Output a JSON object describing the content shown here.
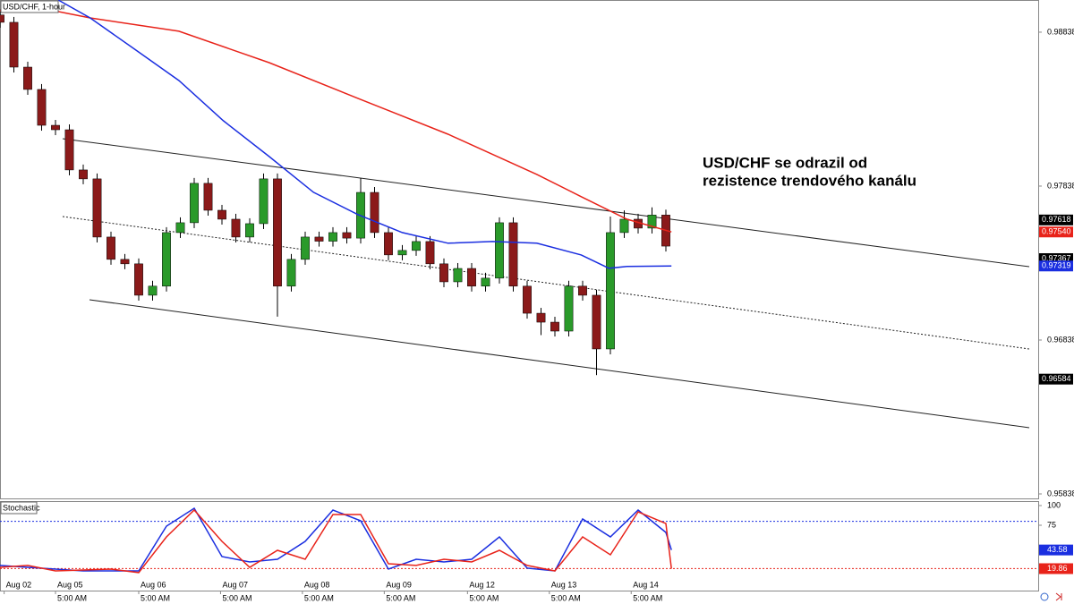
{
  "chart_data": [
    {
      "type": "candlestick",
      "title": "USD/CHF, 1-hour",
      "annotation": [
        "USD/CHF se odrazil od",
        "rezistence trendového kanálu"
      ],
      "x": [
        0,
        1,
        2,
        3,
        4,
        5,
        6,
        7,
        8,
        9,
        10,
        11,
        12,
        13,
        14,
        15,
        16,
        17,
        18,
        19,
        20,
        21,
        22,
        23,
        24,
        25,
        26,
        27,
        28,
        29,
        30,
        31,
        32,
        33,
        34,
        35,
        36,
        37,
        38,
        39,
        40,
        41,
        42,
        43,
        44,
        45,
        46,
        47,
        48
      ],
      "open": [
        0.9895,
        0.98902,
        0.98611,
        0.98466,
        0.98233,
        0.98204,
        0.97943,
        0.97885,
        0.97507,
        0.97362,
        0.97333,
        0.97129,
        0.97188,
        0.97536,
        0.976,
        0.97856,
        0.97681,
        0.97623,
        0.97507,
        0.97594,
        0.97885,
        0.97188,
        0.97362,
        0.97507,
        0.9748,
        0.97536,
        0.975,
        0.97797,
        0.97536,
        0.97391,
        0.9742,
        0.97478,
        0.97333,
        0.97216,
        0.97303,
        0.97188,
        0.9724,
        0.976,
        0.97188,
        0.97012,
        0.96954,
        0.96896,
        0.97188,
        0.97129,
        0.9678,
        0.97536,
        0.97623,
        0.97565,
        0.9765
      ],
      "high": [
        0.98985,
        0.98937,
        0.98646,
        0.98501,
        0.98268,
        0.98239,
        0.97978,
        0.9792,
        0.97542,
        0.97397,
        0.97368,
        0.97223,
        0.97571,
        0.97635,
        0.97891,
        0.97891,
        0.97716,
        0.97658,
        0.97629,
        0.9792,
        0.9792,
        0.97397,
        0.97542,
        0.97542,
        0.97571,
        0.97571,
        0.9789,
        0.97832,
        0.97571,
        0.97455,
        0.97513,
        0.97513,
        0.97368,
        0.97338,
        0.97338,
        0.97275,
        0.97635,
        0.97635,
        0.97223,
        0.97047,
        0.96989,
        0.97223,
        0.97223,
        0.97164,
        0.9764,
        0.9768,
        0.97658,
        0.977,
        0.97685
      ],
      "low": [
        0.98867,
        0.98576,
        0.98431,
        0.98198,
        0.98169,
        0.97908,
        0.9785,
        0.97472,
        0.97327,
        0.97298,
        0.97094,
        0.97094,
        0.97153,
        0.97501,
        0.97565,
        0.97646,
        0.97588,
        0.97472,
        0.97472,
        0.97559,
        0.9699,
        0.97153,
        0.97327,
        0.97445,
        0.97445,
        0.97465,
        0.97465,
        0.97501,
        0.97356,
        0.97356,
        0.97385,
        0.97298,
        0.97181,
        0.97181,
        0.97153,
        0.97153,
        0.97205,
        0.97153,
        0.96977,
        0.9687,
        0.96861,
        0.96861,
        0.97094,
        0.9661,
        0.96745,
        0.97501,
        0.9753,
        0.9753,
        0.97413
      ],
      "close": [
        0.98902,
        0.98611,
        0.98466,
        0.98233,
        0.98204,
        0.97943,
        0.97885,
        0.97507,
        0.97362,
        0.97333,
        0.97129,
        0.97188,
        0.97536,
        0.976,
        0.97856,
        0.97681,
        0.97623,
        0.97507,
        0.97594,
        0.97885,
        0.97188,
        0.97362,
        0.97507,
        0.9748,
        0.97536,
        0.975,
        0.97797,
        0.97536,
        0.97391,
        0.9742,
        0.97478,
        0.97333,
        0.97216,
        0.97303,
        0.97188,
        0.9724,
        0.976,
        0.97188,
        0.97012,
        0.96954,
        0.96896,
        0.97188,
        0.97129,
        0.9678,
        0.97536,
        0.97623,
        0.97565,
        0.9765,
        0.97448
      ],
      "up_color": "#2a9a2a",
      "down_color": "#8b1a1a",
      "series": [
        {
          "color": "#e8231a",
          "x": [
            0,
            3.9,
            6.5,
            12.9,
            19.4,
            25.8,
            32.3,
            38.7,
            41.9,
            45.2,
            48.4
          ],
          "values": [
            0.98977,
            0.98977,
            0.98931,
            0.98844,
            0.9864,
            0.98408,
            0.98175,
            0.97914,
            0.97769,
            0.97623,
            0.9754
          ]
        },
        {
          "color": "#1a2ee0",
          "x": [
            4.2,
            6.5,
            9.7,
            12.9,
            16.1,
            19.4,
            22.6,
            25.8,
            29,
            32.3,
            35.5,
            38.7,
            41.9,
            43.9,
            45.2,
            48.4
          ],
          "values": [
            0.99047,
            0.98931,
            0.98728,
            0.98524,
            0.98263,
            0.9803,
            0.97798,
            0.97653,
            0.97536,
            0.97467,
            0.97478,
            0.97467,
            0.97391,
            0.97304,
            0.97316,
            0.97319
          ]
        }
      ],
      "price_labels": [
        0.97618,
        {
          "value": 0.9754,
          "label": "0.97540"
        },
        0.97367,
        0.97319,
        0.96584
      ],
      "price_label_colors": [
        "#000000",
        "#e8231a",
        "#000000",
        "#1a2ee0",
        "#000000"
      ],
      "xlim": [
        0,
        74.84
      ],
      "ylim": [
        0.95809,
        0.99047
      ],
      "yticks": [
        0.98838,
        0.97838,
        0.96838,
        0.95838
      ],
      "xticks": [
        {
          "value": 0.3,
          "label": "Aug 02"
        },
        {
          "value": 4,
          "label": "Aug 05"
        },
        {
          "value": 10,
          "label": "Aug 06"
        },
        {
          "value": 15.9,
          "label": "Aug 07"
        },
        {
          "value": 21.8,
          "label": "Aug 08"
        },
        {
          "value": 27.7,
          "label": "Aug 09"
        },
        {
          "value": 33.7,
          "label": "Aug 12"
        },
        {
          "value": 39.6,
          "label": "Aug 13"
        },
        {
          "value": 45.5,
          "label": "Aug 14"
        }
      ],
      "xtick_times": [
        null,
        "5:00 AM",
        "5:00 AM",
        "5:00 AM",
        "5:00 AM",
        "5:00 AM",
        "5:00 AM",
        "5:00 AM",
        "5:00 AM"
      ]
    },
    {
      "type": "line",
      "title": "Stochastic",
      "series": [
        {
          "color": "#1a2ee0",
          "x": [
            0,
            2,
            4,
            6,
            8,
            10,
            12,
            14,
            16,
            18,
            20,
            22,
            24,
            26,
            28,
            30,
            32,
            34,
            36,
            38,
            40,
            42,
            44,
            46,
            48,
            48.4
          ],
          "values": [
            23.9,
            21.6,
            19.3,
            17.0,
            17.0,
            17.0,
            73.9,
            96.6,
            35.2,
            28.4,
            31.8,
            54.5,
            94.3,
            80.7,
            19.3,
            31.8,
            28.4,
            31.8,
            60.2,
            20.5,
            17.0,
            83.0,
            60.2,
            94.3,
            65.9,
            43.58
          ]
        },
        {
          "color": "#e8231a",
          "x": [
            0,
            2,
            4,
            6,
            8,
            10,
            12,
            14,
            16,
            18,
            20,
            22,
            24,
            26,
            28,
            30,
            32,
            34,
            36,
            38,
            40,
            42,
            44,
            46,
            48,
            48.4
          ],
          "values": [
            21.6,
            23.9,
            17.0,
            18.2,
            19.3,
            14.8,
            60.2,
            94.3,
            54.5,
            21.6,
            43.2,
            31.8,
            88.6,
            88.6,
            26.1,
            23.9,
            31.8,
            28.4,
            43.2,
            23.9,
            17.0,
            60.2,
            37.5,
            92.0,
            77.3,
            19.86
          ]
        }
      ],
      "levels": [
        80,
        20
      ],
      "level_colors": [
        "#1a2ee0",
        "#e8231a"
      ],
      "xlim": [
        0,
        74.84
      ],
      "ylim": [
        -8,
        105.7
      ],
      "yticks": [
        100,
        75
      ]
    }
  ]
}
